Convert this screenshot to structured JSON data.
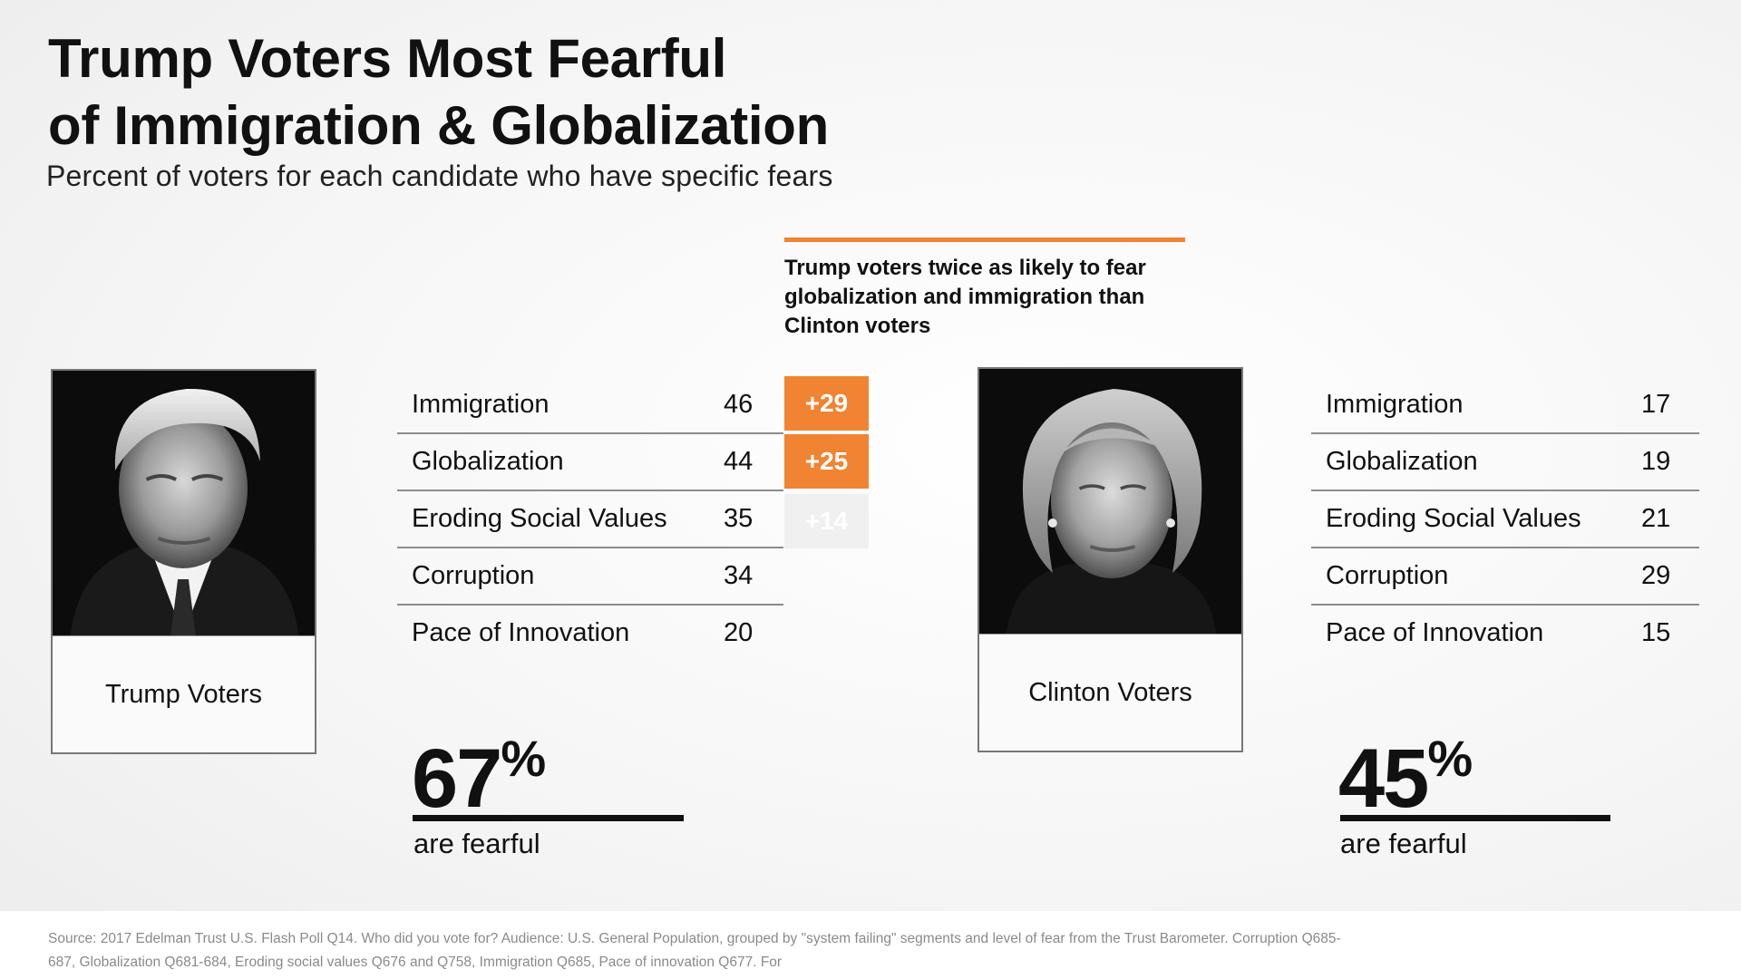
{
  "header": {
    "title_line1": "Trump Voters Most Fearful",
    "title_line2": "of Immigration & Globalization",
    "subtitle": "Percent of voters for each candidate who have specific fears"
  },
  "callout": {
    "text": "Trump voters twice as likely to fear globalization and immigration than Clinton voters",
    "accent_color": "#f08432"
  },
  "chart_data": {
    "type": "table",
    "title": "Trump Voters Most Fearful of Immigration & Globalization",
    "subtitle": "Percent of voters for each candidate who have specific fears",
    "categories": [
      "Immigration",
      "Globalization",
      "Eroding Social Values",
      "Corruption",
      "Pace of Innovation"
    ],
    "series": [
      {
        "name": "Trump Voters",
        "values": [
          46,
          44,
          35,
          34,
          20
        ]
      },
      {
        "name": "Clinton Voters",
        "values": [
          17,
          19,
          21,
          29,
          15
        ]
      }
    ],
    "differences": [
      {
        "category": "Immigration",
        "label": "+29",
        "color": "#f08432"
      },
      {
        "category": "Globalization",
        "label": "+25",
        "color": "#f08432"
      },
      {
        "category": "Eroding Social Values",
        "label": "+14",
        "color": "#f0f0f0"
      }
    ],
    "summary": [
      {
        "group": "Trump Voters",
        "value": 67,
        "unit": "%",
        "caption": "are fearful"
      },
      {
        "group": "Clinton Voters",
        "value": 45,
        "unit": "%",
        "caption": "are fearful"
      }
    ]
  },
  "panels": {
    "trump": {
      "label": "Trump Voters",
      "rows": [
        {
          "label": "Immigration",
          "value": "46"
        },
        {
          "label": "Globalization",
          "value": "44"
        },
        {
          "label": "Eroding Social Values",
          "value": "35"
        },
        {
          "label": "Corruption",
          "value": "34"
        },
        {
          "label": "Pace of Innovation",
          "value": "20"
        }
      ],
      "summary_value": "67",
      "summary_unit": "%",
      "summary_caption": "are fearful"
    },
    "clinton": {
      "label": "Clinton Voters",
      "rows": [
        {
          "label": "Immigration",
          "value": "17"
        },
        {
          "label": "Globalization",
          "value": "19"
        },
        {
          "label": "Eroding Social Values",
          "value": "21"
        },
        {
          "label": "Corruption",
          "value": "29"
        },
        {
          "label": "Pace of Innovation",
          "value": "15"
        }
      ],
      "summary_value": "45",
      "summary_unit": "%",
      "summary_caption": "are fearful"
    }
  },
  "diff_badges": [
    {
      "label": "+29",
      "color": "#f08432"
    },
    {
      "label": "+25",
      "color": "#f08432"
    },
    {
      "label": "+14",
      "color": "#f0f0f0"
    }
  ],
  "footer": {
    "source": "Source: 2017 Edelman Trust U.S. Flash Poll Q14. Who did you vote for? Audience: U.S. General Population, grouped by \"system failing\" segments and level of fear from the Trust Barometer. Corruption Q685-687, Globalization Q681-684, Eroding social values Q676 and Q758, Immigration Q685, Pace of innovation Q677. For"
  }
}
